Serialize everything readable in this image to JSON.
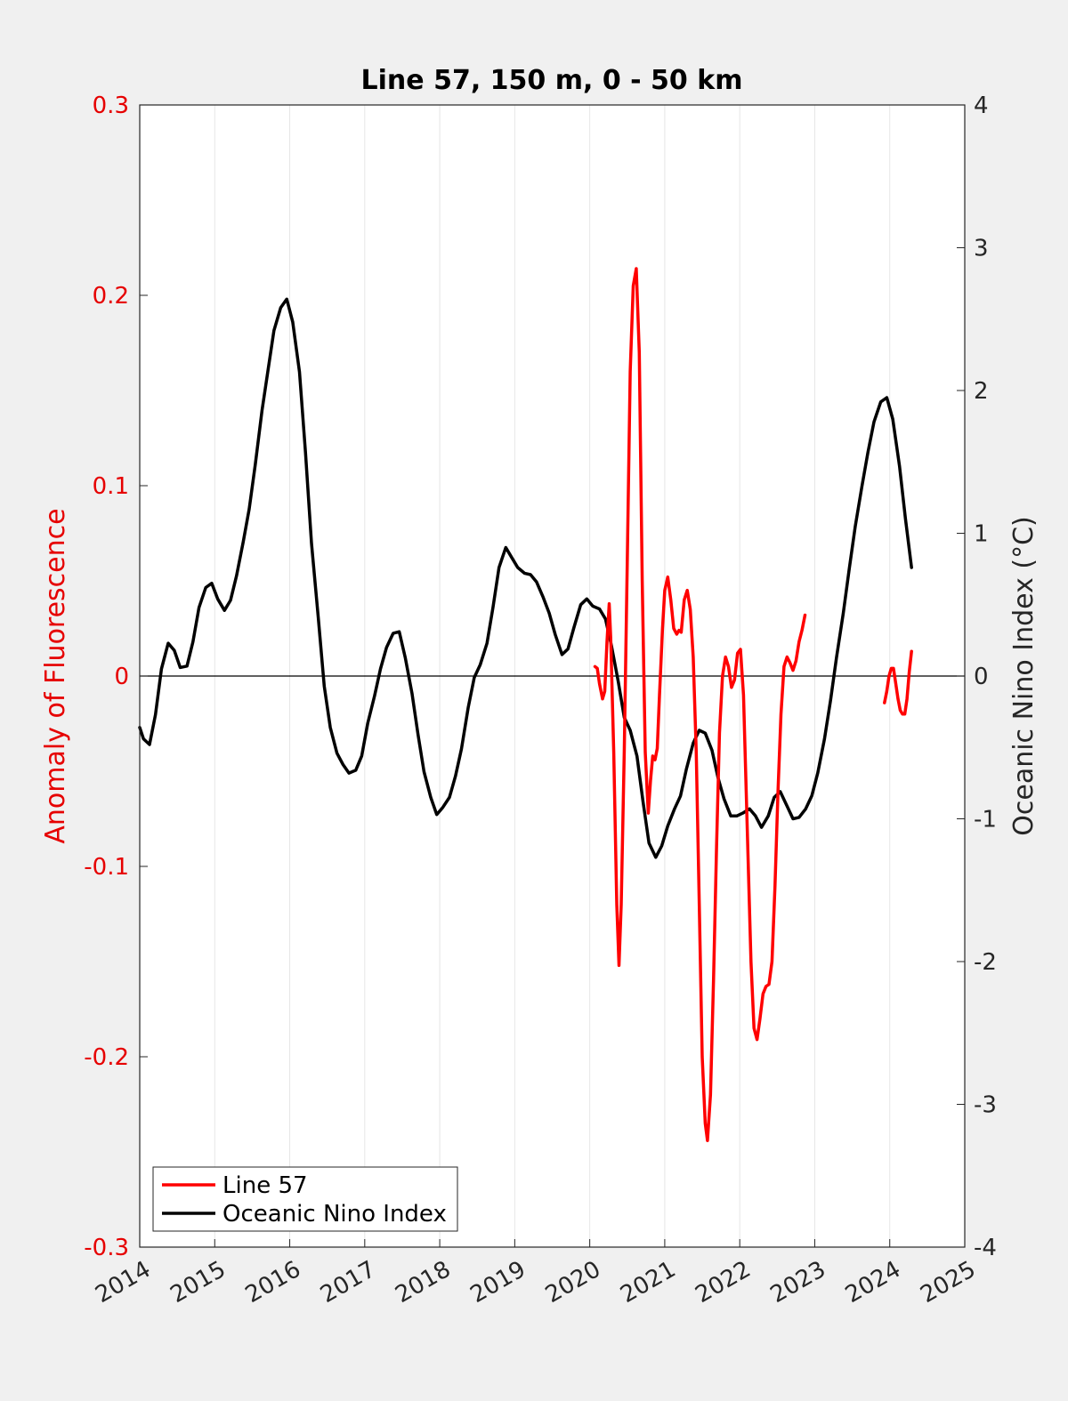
{
  "chart_data": {
    "type": "line",
    "title": "Line 57, 150 m, 0 - 50 km",
    "xlabel": "",
    "ylabel_left": "Anomaly of Fluorescence",
    "ylabel_right": "Oceanic Nino Index (°C)",
    "xlim": [
      2014,
      2025
    ],
    "ylim_left": [
      -0.3,
      0.3
    ],
    "ylim_right": [
      -4,
      4
    ],
    "x_ticks": [
      "2014",
      "2015",
      "2016",
      "2017",
      "2018",
      "2019",
      "2020",
      "2021",
      "2022",
      "2023",
      "2024",
      "2025"
    ],
    "y_ticks_left": [
      "-0.3",
      "-0.2",
      "-0.1",
      "0",
      "0.1",
      "0.2",
      "0.3"
    ],
    "y_ticks_right": [
      "-4",
      "-3",
      "-2",
      "-1",
      "0",
      "1",
      "2",
      "3",
      "4"
    ],
    "grid": "x-only",
    "zero_line": true,
    "legend_position": "bottom-left",
    "colors": {
      "line57": "#ff0000",
      "oni": "#000000",
      "left_axis": "#e60000",
      "axes": "#262626"
    },
    "series": [
      {
        "name": "Line 57",
        "axis": "left",
        "color": "#ff0000",
        "segments": [
          [
            [
              2020.07,
              0.005
            ],
            [
              2020.1,
              0.004
            ],
            [
              2020.13,
              -0.004
            ],
            [
              2020.17,
              -0.012
            ],
            [
              2020.2,
              -0.008
            ],
            [
              2020.23,
              0.018
            ],
            [
              2020.26,
              0.038
            ],
            [
              2020.28,
              0.02
            ],
            [
              2020.32,
              -0.04
            ],
            [
              2020.36,
              -0.12
            ],
            [
              2020.39,
              -0.152
            ],
            [
              2020.42,
              -0.12
            ],
            [
              2020.46,
              -0.04
            ],
            [
              2020.5,
              0.06
            ],
            [
              2020.54,
              0.16
            ],
            [
              2020.58,
              0.205
            ],
            [
              2020.62,
              0.214
            ],
            [
              2020.66,
              0.17
            ],
            [
              2020.7,
              0.05
            ],
            [
              2020.74,
              -0.04
            ],
            [
              2020.78,
              -0.072
            ],
            [
              2020.81,
              -0.055
            ],
            [
              2020.84,
              -0.042
            ],
            [
              2020.87,
              -0.044
            ],
            [
              2020.9,
              -0.038
            ],
            [
              2020.93,
              -0.01
            ],
            [
              2020.97,
              0.025
            ],
            [
              2021.0,
              0.045
            ],
            [
              2021.04,
              0.052
            ],
            [
              2021.08,
              0.04
            ],
            [
              2021.12,
              0.025
            ],
            [
              2021.16,
              0.022
            ],
            [
              2021.19,
              0.024
            ],
            [
              2021.22,
              0.023
            ],
            [
              2021.26,
              0.04
            ],
            [
              2021.3,
              0.045
            ],
            [
              2021.34,
              0.035
            ],
            [
              2021.38,
              0.01
            ],
            [
              2021.42,
              -0.04
            ],
            [
              2021.46,
              -0.12
            ],
            [
              2021.5,
              -0.2
            ],
            [
              2021.54,
              -0.235
            ],
            [
              2021.57,
              -0.244
            ],
            [
              2021.61,
              -0.22
            ],
            [
              2021.65,
              -0.16
            ],
            [
              2021.69,
              -0.09
            ],
            [
              2021.73,
              -0.03
            ],
            [
              2021.77,
              0.0
            ],
            [
              2021.81,
              0.01
            ],
            [
              2021.85,
              0.005
            ],
            [
              2021.89,
              -0.006
            ],
            [
              2021.93,
              -0.002
            ],
            [
              2021.97,
              0.012
            ],
            [
              2022.01,
              0.014
            ],
            [
              2022.05,
              -0.01
            ],
            [
              2022.1,
              -0.08
            ],
            [
              2022.15,
              -0.15
            ],
            [
              2022.19,
              -0.185
            ],
            [
              2022.23,
              -0.191
            ],
            [
              2022.27,
              -0.18
            ],
            [
              2022.31,
              -0.167
            ],
            [
              2022.35,
              -0.163
            ],
            [
              2022.39,
              -0.162
            ],
            [
              2022.43,
              -0.15
            ],
            [
              2022.47,
              -0.11
            ],
            [
              2022.51,
              -0.06
            ],
            [
              2022.55,
              -0.02
            ],
            [
              2022.59,
              0.005
            ],
            [
              2022.63,
              0.01
            ],
            [
              2022.67,
              0.007
            ],
            [
              2022.71,
              0.003
            ],
            [
              2022.75,
              0.008
            ],
            [
              2022.79,
              0.018
            ],
            [
              2022.83,
              0.024
            ],
            [
              2022.87,
              0.032
            ]
          ],
          [
            [
              2023.93,
              -0.014
            ],
            [
              2023.96,
              -0.008
            ],
            [
              2023.99,
              0.0
            ],
            [
              2024.02,
              0.004
            ],
            [
              2024.05,
              0.004
            ],
            [
              2024.08,
              -0.004
            ],
            [
              2024.11,
              -0.012
            ],
            [
              2024.14,
              -0.018
            ],
            [
              2024.17,
              -0.02
            ],
            [
              2024.2,
              -0.02
            ],
            [
              2024.23,
              -0.012
            ],
            [
              2024.26,
              0.002
            ],
            [
              2024.29,
              0.013
            ]
          ]
        ]
      },
      {
        "name": "Oceanic Nino Index",
        "axis": "right",
        "color": "#000000",
        "points": [
          [
            2014.0,
            -0.36
          ],
          [
            2014.05,
            -0.44
          ],
          [
            2014.13,
            -0.48
          ],
          [
            2014.21,
            -0.27
          ],
          [
            2014.29,
            0.05
          ],
          [
            2014.38,
            0.23
          ],
          [
            2014.46,
            0.18
          ],
          [
            2014.54,
            0.06
          ],
          [
            2014.63,
            0.07
          ],
          [
            2014.71,
            0.24
          ],
          [
            2014.79,
            0.48
          ],
          [
            2014.88,
            0.62
          ],
          [
            2014.96,
            0.65
          ],
          [
            2015.04,
            0.54
          ],
          [
            2015.13,
            0.46
          ],
          [
            2015.21,
            0.53
          ],
          [
            2015.29,
            0.7
          ],
          [
            2015.38,
            0.94
          ],
          [
            2015.46,
            1.17
          ],
          [
            2015.54,
            1.48
          ],
          [
            2015.63,
            1.86
          ],
          [
            2015.71,
            2.14
          ],
          [
            2015.79,
            2.42
          ],
          [
            2015.88,
            2.58
          ],
          [
            2015.96,
            2.64
          ],
          [
            2016.04,
            2.48
          ],
          [
            2016.13,
            2.13
          ],
          [
            2016.21,
            1.57
          ],
          [
            2016.29,
            0.93
          ],
          [
            2016.38,
            0.41
          ],
          [
            2016.46,
            -0.07
          ],
          [
            2016.54,
            -0.36
          ],
          [
            2016.63,
            -0.54
          ],
          [
            2016.71,
            -0.62
          ],
          [
            2016.79,
            -0.68
          ],
          [
            2016.88,
            -0.66
          ],
          [
            2016.96,
            -0.56
          ],
          [
            2017.04,
            -0.33
          ],
          [
            2017.13,
            -0.14
          ],
          [
            2017.21,
            0.05
          ],
          [
            2017.29,
            0.2
          ],
          [
            2017.38,
            0.3
          ],
          [
            2017.46,
            0.31
          ],
          [
            2017.54,
            0.13
          ],
          [
            2017.63,
            -0.12
          ],
          [
            2017.71,
            -0.41
          ],
          [
            2017.79,
            -0.67
          ],
          [
            2017.88,
            -0.85
          ],
          [
            2017.96,
            -0.97
          ],
          [
            2018.04,
            -0.92
          ],
          [
            2018.13,
            -0.85
          ],
          [
            2018.21,
            -0.7
          ],
          [
            2018.29,
            -0.51
          ],
          [
            2018.38,
            -0.22
          ],
          [
            2018.46,
            -0.01
          ],
          [
            2018.54,
            0.08
          ],
          [
            2018.63,
            0.23
          ],
          [
            2018.71,
            0.48
          ],
          [
            2018.79,
            0.76
          ],
          [
            2018.88,
            0.9
          ],
          [
            2018.96,
            0.83
          ],
          [
            2019.04,
            0.76
          ],
          [
            2019.13,
            0.72
          ],
          [
            2019.21,
            0.71
          ],
          [
            2019.29,
            0.66
          ],
          [
            2019.38,
            0.55
          ],
          [
            2019.46,
            0.44
          ],
          [
            2019.54,
            0.29
          ],
          [
            2019.63,
            0.15
          ],
          [
            2019.71,
            0.19
          ],
          [
            2019.79,
            0.34
          ],
          [
            2019.88,
            0.5
          ],
          [
            2019.96,
            0.54
          ],
          [
            2020.04,
            0.49
          ],
          [
            2020.13,
            0.47
          ],
          [
            2020.21,
            0.4
          ],
          [
            2020.29,
            0.21
          ],
          [
            2020.38,
            -0.04
          ],
          [
            2020.46,
            -0.29
          ],
          [
            2020.54,
            -0.38
          ],
          [
            2020.63,
            -0.56
          ],
          [
            2020.71,
            -0.88
          ],
          [
            2020.79,
            -1.17
          ],
          [
            2020.88,
            -1.27
          ],
          [
            2020.96,
            -1.19
          ],
          [
            2021.04,
            -1.05
          ],
          [
            2021.13,
            -0.93
          ],
          [
            2021.21,
            -0.84
          ],
          [
            2021.29,
            -0.65
          ],
          [
            2021.38,
            -0.47
          ],
          [
            2021.46,
            -0.38
          ],
          [
            2021.54,
            -0.4
          ],
          [
            2021.63,
            -0.52
          ],
          [
            2021.71,
            -0.71
          ],
          [
            2021.79,
            -0.86
          ],
          [
            2021.88,
            -0.98
          ],
          [
            2021.96,
            -0.98
          ],
          [
            2022.04,
            -0.96
          ],
          [
            2022.13,
            -0.93
          ],
          [
            2022.21,
            -0.98
          ],
          [
            2022.29,
            -1.06
          ],
          [
            2022.38,
            -0.98
          ],
          [
            2022.46,
            -0.85
          ],
          [
            2022.54,
            -0.81
          ],
          [
            2022.63,
            -0.91
          ],
          [
            2022.71,
            -1.0
          ],
          [
            2022.79,
            -0.99
          ],
          [
            2022.88,
            -0.93
          ],
          [
            2022.96,
            -0.84
          ],
          [
            2023.04,
            -0.68
          ],
          [
            2023.13,
            -0.44
          ],
          [
            2023.21,
            -0.17
          ],
          [
            2023.29,
            0.13
          ],
          [
            2023.38,
            0.44
          ],
          [
            2023.46,
            0.75
          ],
          [
            2023.54,
            1.05
          ],
          [
            2023.63,
            1.33
          ],
          [
            2023.71,
            1.57
          ],
          [
            2023.79,
            1.78
          ],
          [
            2023.88,
            1.92
          ],
          [
            2023.96,
            1.95
          ],
          [
            2024.04,
            1.8
          ],
          [
            2024.13,
            1.47
          ],
          [
            2024.21,
            1.1
          ],
          [
            2024.29,
            0.76
          ]
        ]
      }
    ]
  }
}
